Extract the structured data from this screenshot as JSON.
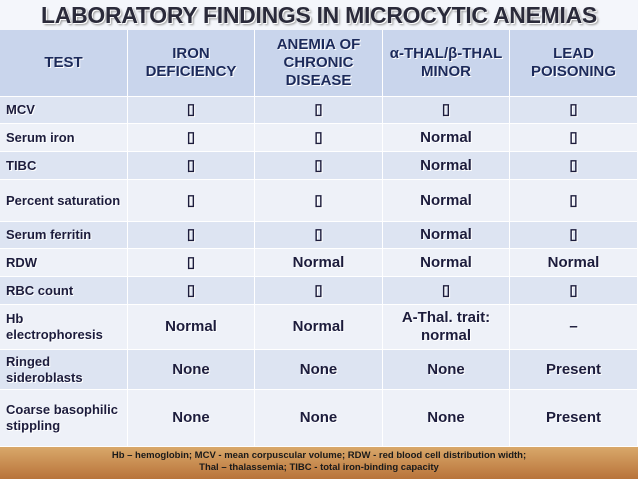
{
  "title": "LABORATORY FINDINGS IN MICROCYTIC ANEMIAS",
  "table": {
    "header": [
      "TEST",
      "IRON DEFICIENCY",
      "ANEMIA OF CHRONIC DISEASE",
      "α-THAL/β-THAL MINOR",
      "LEAD POISONING"
    ],
    "rows": [
      [
        "MCV",
        "▯",
        "▯",
        "▯",
        "▯"
      ],
      [
        "Serum iron",
        "▯",
        "▯",
        "Normal",
        "▯"
      ],
      [
        "TIBC",
        "▯",
        "▯",
        "Normal",
        "▯"
      ],
      [
        "Percent saturation",
        "▯",
        "▯",
        "Normal",
        "▯"
      ],
      [
        "Serum ferritin",
        "▯",
        "▯",
        "Normal",
        "▯"
      ],
      [
        "RDW",
        "▯",
        "Normal",
        "Normal",
        "Normal"
      ],
      [
        "RBC count",
        "▯",
        "▯",
        "▯",
        "▯"
      ],
      [
        "Hb electrophoresis",
        "Normal",
        "Normal",
        "A-Thal. trait: normal",
        "–"
      ],
      [
        "Ringed sideroblasts",
        "None",
        "None",
        "None",
        "Present"
      ],
      [
        "Coarse basophilic stippling",
        "None",
        "None",
        "None",
        "Present"
      ]
    ]
  },
  "footer": [
    "Hb – hemoglobin; MCV - mean corpuscular volume; RDW - red blood cell distribution width;",
    "Thal – thalassemia; TIBC - total iron-binding capacity"
  ]
}
